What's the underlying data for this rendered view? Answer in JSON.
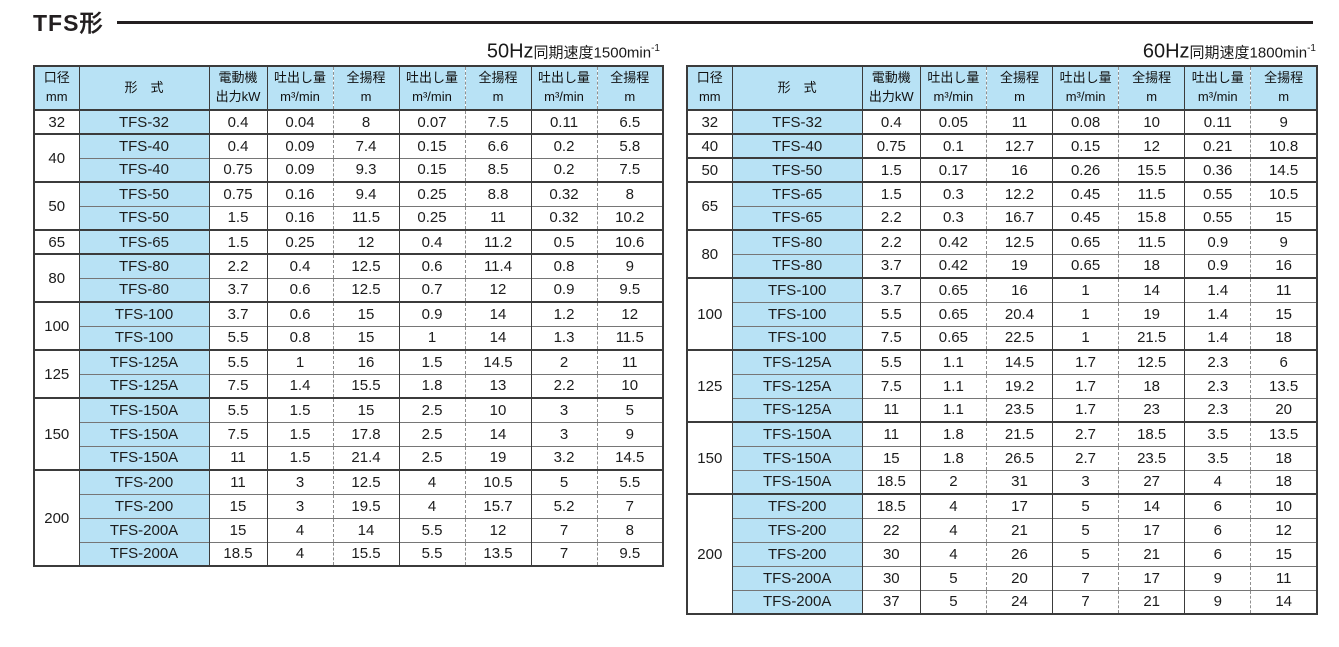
{
  "page": {
    "title": "TFS形"
  },
  "columns": {
    "bore_line1": "口径",
    "bore_line2": "mm",
    "model": "形　式",
    "power_line1": "電動機",
    "power_line2": "出力kW",
    "flow_line1": "吐出し量",
    "flow_line2": "m³/min",
    "head_line1": "全揚程",
    "head_line2": "m"
  },
  "tables": [
    {
      "title_hz": "50Hz",
      "title_label": "同期速度",
      "title_value": "1500min",
      "title_sup": "-1",
      "groups": [
        {
          "bore": "32",
          "rows": [
            [
              "TFS-32",
              "0.4",
              "0.04",
              "8",
              "0.07",
              "7.5",
              "0.11",
              "6.5"
            ]
          ]
        },
        {
          "bore": "40",
          "rows": [
            [
              "TFS-40",
              "0.4",
              "0.09",
              "7.4",
              "0.15",
              "6.6",
              "0.2",
              "5.8"
            ],
            [
              "TFS-40",
              "0.75",
              "0.09",
              "9.3",
              "0.15",
              "8.5",
              "0.2",
              "7.5"
            ]
          ]
        },
        {
          "bore": "50",
          "rows": [
            [
              "TFS-50",
              "0.75",
              "0.16",
              "9.4",
              "0.25",
              "8.8",
              "0.32",
              "8"
            ],
            [
              "TFS-50",
              "1.5",
              "0.16",
              "11.5",
              "0.25",
              "11",
              "0.32",
              "10.2"
            ]
          ]
        },
        {
          "bore": "65",
          "rows": [
            [
              "TFS-65",
              "1.5",
              "0.25",
              "12",
              "0.4",
              "11.2",
              "0.5",
              "10.6"
            ]
          ]
        },
        {
          "bore": "80",
          "rows": [
            [
              "TFS-80",
              "2.2",
              "0.4",
              "12.5",
              "0.6",
              "11.4",
              "0.8",
              "9"
            ],
            [
              "TFS-80",
              "3.7",
              "0.6",
              "12.5",
              "0.7",
              "12",
              "0.9",
              "9.5"
            ]
          ]
        },
        {
          "bore": "100",
          "rows": [
            [
              "TFS-100",
              "3.7",
              "0.6",
              "15",
              "0.9",
              "14",
              "1.2",
              "12"
            ],
            [
              "TFS-100",
              "5.5",
              "0.8",
              "15",
              "1",
              "14",
              "1.3",
              "11.5"
            ]
          ]
        },
        {
          "bore": "125",
          "rows": [
            [
              "TFS-125A",
              "5.5",
              "1",
              "16",
              "1.5",
              "14.5",
              "2",
              "11"
            ],
            [
              "TFS-125A",
              "7.5",
              "1.4",
              "15.5",
              "1.8",
              "13",
              "2.2",
              "10"
            ]
          ]
        },
        {
          "bore": "150",
          "rows": [
            [
              "TFS-150A",
              "5.5",
              "1.5",
              "15",
              "2.5",
              "10",
              "3",
              "5"
            ],
            [
              "TFS-150A",
              "7.5",
              "1.5",
              "17.8",
              "2.5",
              "14",
              "3",
              "9"
            ],
            [
              "TFS-150A",
              "11",
              "1.5",
              "21.4",
              "2.5",
              "19",
              "3.2",
              "14.5"
            ]
          ]
        },
        {
          "bore": "200",
          "rows": [
            [
              "TFS-200",
              "11",
              "3",
              "12.5",
              "4",
              "10.5",
              "5",
              "5.5"
            ],
            [
              "TFS-200",
              "15",
              "3",
              "19.5",
              "4",
              "15.7",
              "5.2",
              "7"
            ],
            [
              "TFS-200A",
              "15",
              "4",
              "14",
              "5.5",
              "12",
              "7",
              "8"
            ],
            [
              "TFS-200A",
              "18.5",
              "4",
              "15.5",
              "5.5",
              "13.5",
              "7",
              "9.5"
            ]
          ]
        }
      ]
    },
    {
      "title_hz": "60Hz",
      "title_label": "同期速度",
      "title_value": "1800min",
      "title_sup": "-1",
      "groups": [
        {
          "bore": "32",
          "rows": [
            [
              "TFS-32",
              "0.4",
              "0.05",
              "11",
              "0.08",
              "10",
              "0.11",
              "9"
            ]
          ]
        },
        {
          "bore": "40",
          "rows": [
            [
              "TFS-40",
              "0.75",
              "0.1",
              "12.7",
              "0.15",
              "12",
              "0.21",
              "10.8"
            ]
          ]
        },
        {
          "bore": "50",
          "rows": [
            [
              "TFS-50",
              "1.5",
              "0.17",
              "16",
              "0.26",
              "15.5",
              "0.36",
              "14.5"
            ]
          ]
        },
        {
          "bore": "65",
          "rows": [
            [
              "TFS-65",
              "1.5",
              "0.3",
              "12.2",
              "0.45",
              "11.5",
              "0.55",
              "10.5"
            ],
            [
              "TFS-65",
              "2.2",
              "0.3",
              "16.7",
              "0.45",
              "15.8",
              "0.55",
              "15"
            ]
          ]
        },
        {
          "bore": "80",
          "rows": [
            [
              "TFS-80",
              "2.2",
              "0.42",
              "12.5",
              "0.65",
              "11.5",
              "0.9",
              "9"
            ],
            [
              "TFS-80",
              "3.7",
              "0.42",
              "19",
              "0.65",
              "18",
              "0.9",
              "16"
            ]
          ]
        },
        {
          "bore": "100",
          "rows": [
            [
              "TFS-100",
              "3.7",
              "0.65",
              "16",
              "1",
              "14",
              "1.4",
              "11"
            ],
            [
              "TFS-100",
              "5.5",
              "0.65",
              "20.4",
              "1",
              "19",
              "1.4",
              "15"
            ],
            [
              "TFS-100",
              "7.5",
              "0.65",
              "22.5",
              "1",
              "21.5",
              "1.4",
              "18"
            ]
          ]
        },
        {
          "bore": "125",
          "rows": [
            [
              "TFS-125A",
              "5.5",
              "1.1",
              "14.5",
              "1.7",
              "12.5",
              "2.3",
              "6"
            ],
            [
              "TFS-125A",
              "7.5",
              "1.1",
              "19.2",
              "1.7",
              "18",
              "2.3",
              "13.5"
            ],
            [
              "TFS-125A",
              "11",
              "1.1",
              "23.5",
              "1.7",
              "23",
              "2.3",
              "20"
            ]
          ]
        },
        {
          "bore": "150",
          "rows": [
            [
              "TFS-150A",
              "11",
              "1.8",
              "21.5",
              "2.7",
              "18.5",
              "3.5",
              "13.5"
            ],
            [
              "TFS-150A",
              "15",
              "1.8",
              "26.5",
              "2.7",
              "23.5",
              "3.5",
              "18"
            ],
            [
              "TFS-150A",
              "18.5",
              "2",
              "31",
              "3",
              "27",
              "4",
              "18"
            ]
          ]
        },
        {
          "bore": "200",
          "rows": [
            [
              "TFS-200",
              "18.5",
              "4",
              "17",
              "5",
              "14",
              "6",
              "10"
            ],
            [
              "TFS-200",
              "22",
              "4",
              "21",
              "5",
              "17",
              "6",
              "12"
            ],
            [
              "TFS-200",
              "30",
              "4",
              "26",
              "5",
              "21",
              "6",
              "15"
            ],
            [
              "TFS-200A",
              "30",
              "5",
              "20",
              "7",
              "17",
              "9",
              "11"
            ],
            [
              "TFS-200A",
              "37",
              "5",
              "24",
              "7",
              "21",
              "9",
              "14"
            ]
          ]
        }
      ]
    }
  ]
}
